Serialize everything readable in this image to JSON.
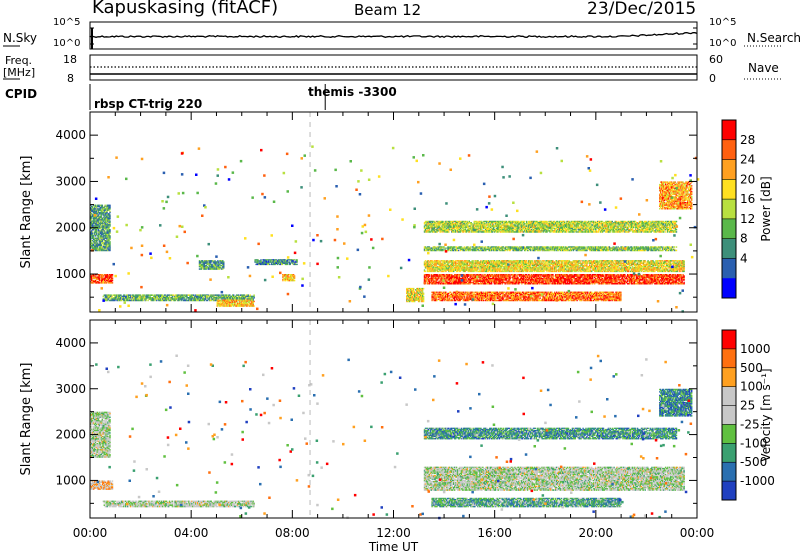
{
  "header": {
    "station": "Kapuskasing (fitACF)",
    "beam": "Beam 12",
    "date": "23/Dec/2015"
  },
  "strip1": {
    "left_label": "N.Sky",
    "right_label": "N.Search",
    "left_ticks": [
      "10^5",
      "10^0"
    ],
    "right_ticks": [
      "10^5",
      "10^0"
    ]
  },
  "strip2": {
    "left_label_1": "Freq.",
    "left_label_2": "[MHz]",
    "right_label": "Nave",
    "left_ticks": [
      "18",
      "8"
    ],
    "right_ticks": [
      "60",
      "0"
    ]
  },
  "cpid": {
    "label": "CPID",
    "segments": [
      {
        "text": "rbsp CT-trig 220",
        "start_hour": 0
      },
      {
        "text": "themis -3300",
        "start_hour": 9.3
      }
    ]
  },
  "chart_data": [
    {
      "type": "heatmap",
      "name": "power",
      "ylabel": "Slant Range [km]",
      "ylim": [
        180,
        4500
      ],
      "yticks": [
        1000,
        2000,
        3000,
        4000
      ],
      "xlim": [
        0,
        24
      ],
      "colorbar": {
        "label": "Power [dB]",
        "ticks": [
          "28",
          "24",
          "20",
          "16",
          "12",
          "8",
          "4"
        ],
        "colors": [
          "#0000ff",
          "#2a5fb0",
          "#3d8f7a",
          "#5ab84a",
          "#b8e040",
          "#ffe020",
          "#ffa020",
          "#ff6010",
          "#ff0000"
        ]
      },
      "features": [
        {
          "t": [
            0.0,
            0.9
          ],
          "r": [
            800,
            1000
          ],
          "level": 0.9
        },
        {
          "t": [
            0.0,
            0.8
          ],
          "r": [
            1500,
            2500
          ],
          "level": 0.3
        },
        {
          "t": [
            0.5,
            6.5
          ],
          "r": [
            420,
            560
          ],
          "level": 0.35
        },
        {
          "t": [
            5.0,
            6.5
          ],
          "r": [
            300,
            450
          ],
          "level": 0.7
        },
        {
          "t": [
            4.3,
            5.3
          ],
          "r": [
            1100,
            1300
          ],
          "level": 0.3
        },
        {
          "t": [
            6.5,
            8.2
          ],
          "r": [
            1200,
            1320
          ],
          "level": 0.25
        },
        {
          "t": [
            7.6,
            8.1
          ],
          "r": [
            850,
            1000
          ],
          "level": 0.7
        },
        {
          "t": [
            12.5,
            13.2
          ],
          "r": [
            400,
            700
          ],
          "level": 0.6
        },
        {
          "t": [
            13.2,
            23.5
          ],
          "r": [
            780,
            1000
          ],
          "level": 0.95
        },
        {
          "t": [
            13.2,
            23.5
          ],
          "r": [
            1050,
            1300
          ],
          "level": 0.6
        },
        {
          "t": [
            13.5,
            21.0
          ],
          "r": [
            420,
            620
          ],
          "level": 0.85
        },
        {
          "t": [
            13.2,
            23.2
          ],
          "r": [
            1500,
            1600
          ],
          "level": 0.4
        },
        {
          "t": [
            13.2,
            23.2
          ],
          "r": [
            1900,
            2150
          ],
          "level": 0.5
        },
        {
          "t": [
            22.5,
            23.8
          ],
          "r": [
            2400,
            3000
          ],
          "level": 0.75
        }
      ]
    },
    {
      "type": "heatmap",
      "name": "velocity",
      "ylabel": "Slant Range [km]",
      "ylim": [
        180,
        4500
      ],
      "yticks": [
        1000,
        2000,
        3000,
        4000
      ],
      "xlim": [
        0,
        24
      ],
      "xticks": [
        "00:00",
        "04:00",
        "08:00",
        "12:00",
        "16:00",
        "20:00",
        "00:00"
      ],
      "xlabel": "Time UT",
      "colorbar": {
        "label": "Velocity [m s⁻¹]",
        "ticks": [
          "1000",
          "500",
          "100",
          "25",
          "-25",
          "-100",
          "-500",
          "-1000"
        ],
        "colors": [
          "#2040c0",
          "#2a6fb0",
          "#3aa070",
          "#60c040",
          "#c8c8c8",
          "#c8c8c8",
          "#ffa020",
          "#ff7010",
          "#ff0000"
        ]
      },
      "features": [
        {
          "t": [
            0.0,
            0.9
          ],
          "r": [
            800,
            1000
          ],
          "level": 0.7
        },
        {
          "t": [
            0.0,
            0.8
          ],
          "r": [
            1500,
            2500
          ],
          "level": 0.5
        },
        {
          "t": [
            0.5,
            6.5
          ],
          "r": [
            420,
            560
          ],
          "level": 0.5
        },
        {
          "t": [
            13.2,
            23.5
          ],
          "r": [
            780,
            1300
          ],
          "level": 0.5
        },
        {
          "t": [
            13.5,
            21.0
          ],
          "r": [
            420,
            620
          ],
          "level": 0.3
        },
        {
          "t": [
            13.2,
            23.2
          ],
          "r": [
            1900,
            2150
          ],
          "level": 0.25
        },
        {
          "t": [
            22.5,
            23.8
          ],
          "r": [
            2400,
            3000
          ],
          "level": 0.2
        }
      ]
    }
  ]
}
